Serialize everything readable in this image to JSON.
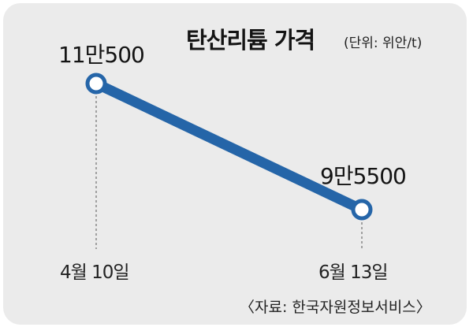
{
  "chart_data": {
    "type": "line",
    "title": "탄산리튬 가격",
    "unit_note": "(단위: 위안/t)",
    "x": [
      "4월 10일",
      "6월 13일"
    ],
    "series": [
      {
        "values": [
          110500,
          95500
        ],
        "data_labels": [
          "11만500",
          "9만5500"
        ]
      }
    ],
    "source": "〈자료: 한국자원정보서비스〉",
    "colors": {
      "line": "#2565a8",
      "marker_fill": "#ffffff",
      "background": "#ebebeb"
    },
    "grid": false,
    "legend": "none"
  }
}
